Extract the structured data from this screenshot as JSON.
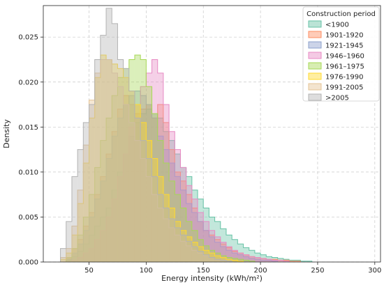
{
  "chart_data": {
    "type": "histogram",
    "xlabel": "Energy intensity (kWh/m²)",
    "ylabel": "Density",
    "xlim": [
      10,
      305
    ],
    "ylim": [
      0,
      0.0285
    ],
    "xticks": [
      50,
      100,
      150,
      200,
      250,
      300
    ],
    "yticks": [
      0.0,
      0.005,
      0.01,
      0.015,
      0.02,
      0.025
    ],
    "ytick_labels": [
      "0.000",
      "0.005",
      "0.010",
      "0.015",
      "0.020",
      "0.025"
    ],
    "grid": true,
    "bin_width": 5,
    "legend": {
      "title": "Construction period",
      "placement": "top-right"
    },
    "series": [
      {
        "name": "<1900",
        "color": "#66c2a5",
        "bin_start": 30,
        "density": [
          0.0002,
          0.0006,
          0.0012,
          0.002,
          0.003,
          0.004,
          0.005,
          0.006,
          0.008,
          0.01,
          0.012,
          0.014,
          0.0155,
          0.0165,
          0.017,
          0.0165,
          0.016,
          0.0145,
          0.0135,
          0.012,
          0.0105,
          0.0095,
          0.008,
          0.007,
          0.006,
          0.005,
          0.0045,
          0.0037,
          0.003,
          0.0025,
          0.002,
          0.0016,
          0.0013,
          0.001,
          0.0008,
          0.0006,
          0.0005,
          0.0004,
          0.0003,
          0.0002,
          0.0002,
          0.0001,
          0.0001
        ]
      },
      {
        "name": "1901-1920",
        "color": "#fc8d62",
        "bin_start": 30,
        "density": [
          0.0004,
          0.0015,
          0.0025,
          0.004,
          0.0055,
          0.0075,
          0.0095,
          0.012,
          0.0145,
          0.017,
          0.0185,
          0.0175,
          0.0165,
          0.017,
          0.0175,
          0.016,
          0.0175,
          0.0155,
          0.0125,
          0.01,
          0.009,
          0.0075,
          0.006,
          0.0045,
          0.0035,
          0.003,
          0.0025,
          0.002,
          0.0016,
          0.0012,
          0.001,
          0.0008,
          0.0006,
          0.0005,
          0.0004,
          0.0003,
          0.0003,
          0.0002,
          0.0002,
          0.0001,
          0.0001
        ]
      },
      {
        "name": "1921-1945",
        "color": "#8da0cb",
        "bin_start": 30,
        "density": [
          0.0003,
          0.001,
          0.002,
          0.0035,
          0.005,
          0.007,
          0.009,
          0.0115,
          0.014,
          0.016,
          0.0175,
          0.0185,
          0.019,
          0.0185,
          0.0175,
          0.016,
          0.014,
          0.0125,
          0.011,
          0.0095,
          0.008,
          0.0065,
          0.0055,
          0.0045,
          0.0035,
          0.0028,
          0.0022,
          0.0017,
          0.0013,
          0.001,
          0.0008,
          0.0006,
          0.0004,
          0.0003,
          0.0002,
          0.0002,
          0.0001
        ]
      },
      {
        "name": "1946–1960",
        "color": "#e78ac3",
        "bin_start": 35,
        "density": [
          0.0002,
          0.0005,
          0.001,
          0.0015,
          0.0025,
          0.0035,
          0.005,
          0.007,
          0.0095,
          0.012,
          0.015,
          0.0175,
          0.0195,
          0.021,
          0.0225,
          0.021,
          0.0175,
          0.0145,
          0.0125,
          0.0105,
          0.0085,
          0.007,
          0.0055,
          0.0045,
          0.0035,
          0.0028,
          0.0022,
          0.0017,
          0.0013,
          0.001,
          0.0008,
          0.0006,
          0.0005,
          0.0004,
          0.0003,
          0.0002,
          0.0002,
          0.0001
        ]
      },
      {
        "name": "1961–1975",
        "color": "#a6d854",
        "bin_start": 30,
        "density": [
          0.0005,
          0.0015,
          0.003,
          0.005,
          0.0075,
          0.0105,
          0.0135,
          0.016,
          0.0185,
          0.0205,
          0.0215,
          0.0225,
          0.023,
          0.0225,
          0.0195,
          0.0165,
          0.0135,
          0.011,
          0.009,
          0.0075,
          0.006,
          0.0045,
          0.0035,
          0.0025,
          0.0018,
          0.0013,
          0.001,
          0.0007,
          0.0005,
          0.0004,
          0.0003,
          0.0002,
          0.0001
        ]
      },
      {
        "name": "1976-1990",
        "color": "#ffd92f",
        "bin_start": 25,
        "density": [
          0.0003,
          0.001,
          0.003,
          0.0065,
          0.011,
          0.016,
          0.0205,
          0.023,
          0.0225,
          0.022,
          0.0215,
          0.0205,
          0.019,
          0.0175,
          0.0155,
          0.0135,
          0.0115,
          0.0095,
          0.0075,
          0.006,
          0.0045,
          0.0035,
          0.0028,
          0.0022,
          0.0017,
          0.0013,
          0.001,
          0.0007,
          0.0005,
          0.0003,
          0.0002,
          0.0001
        ]
      },
      {
        "name": "1991-2005",
        "color": "#e5c494",
        "bin_start": 25,
        "density": [
          0.0005,
          0.0015,
          0.004,
          0.008,
          0.013,
          0.018,
          0.021,
          0.0225,
          0.0225,
          0.021,
          0.0195,
          0.0175,
          0.0155,
          0.0135,
          0.0115,
          0.0095,
          0.0075,
          0.006,
          0.0048,
          0.0038,
          0.003,
          0.0023,
          0.0018,
          0.0013,
          0.001,
          0.0007,
          0.0005,
          0.0003,
          0.0002,
          0.0001
        ]
      },
      {
        "name": ">2005",
        "color": "#b3b3b3",
        "bin_start": 25,
        "density": [
          0.0015,
          0.0045,
          0.0095,
          0.0125,
          0.0155,
          0.0175,
          0.0225,
          0.0252,
          0.0282,
          0.0265,
          0.0225,
          0.0215,
          0.019,
          0.016,
          0.0135,
          0.0115,
          0.0095,
          0.0075,
          0.006,
          0.0048,
          0.0038,
          0.003,
          0.0023,
          0.0017,
          0.0012,
          0.0008,
          0.0005,
          0.0003,
          0.0002,
          0.0001
        ]
      }
    ]
  }
}
